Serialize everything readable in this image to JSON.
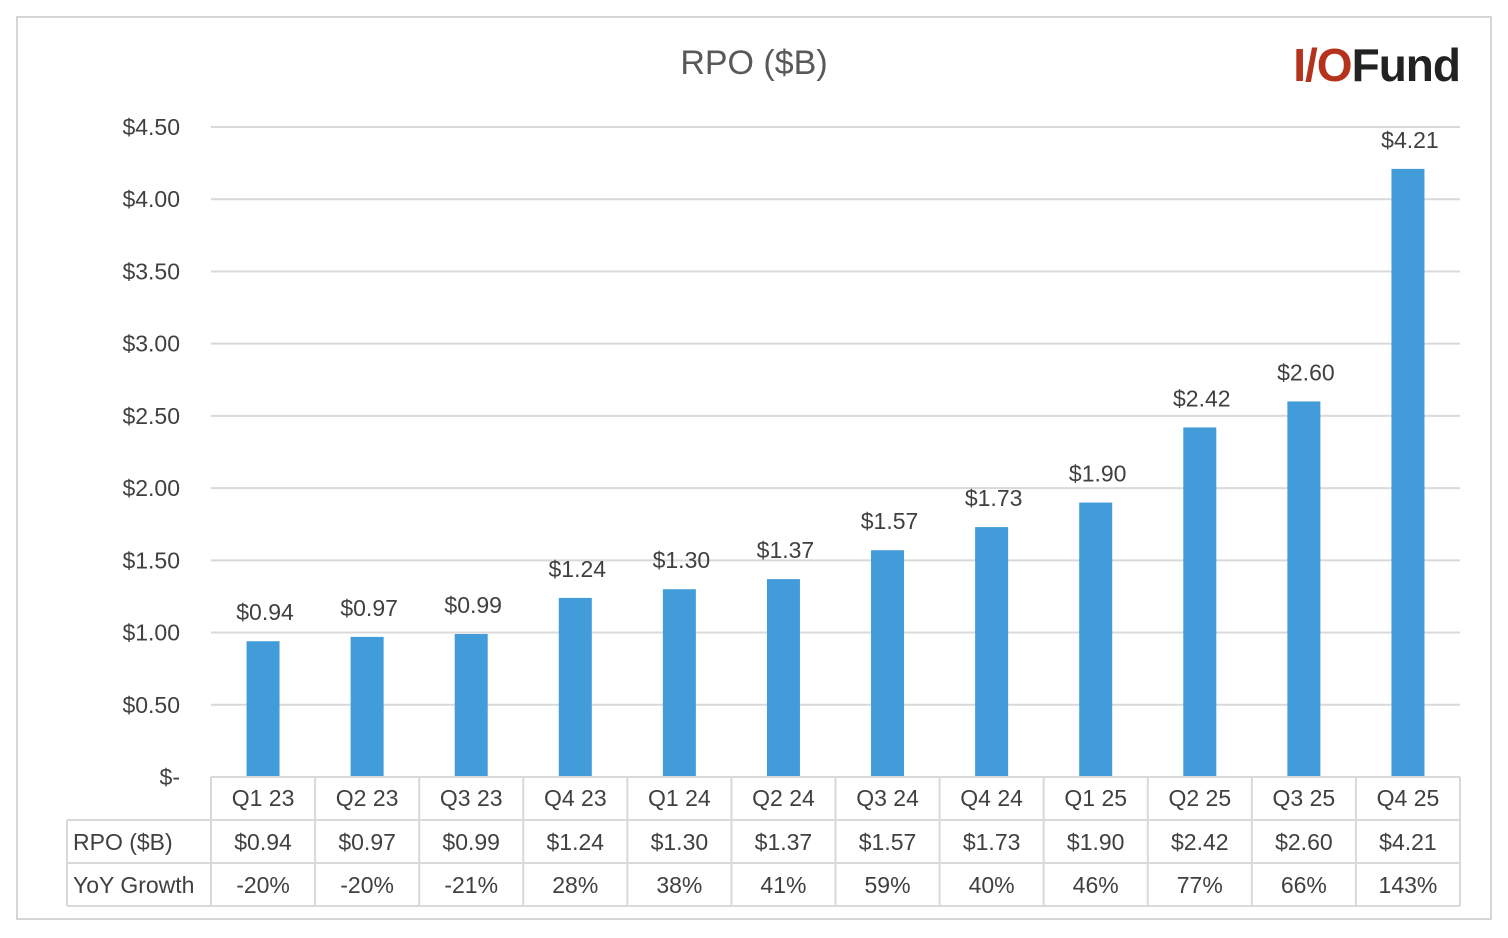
{
  "chart_data": {
    "type": "bar",
    "title": "RPO ($B)",
    "categories": [
      "Q1 23",
      "Q2 23",
      "Q3 23",
      "Q4 23",
      "Q1 24",
      "Q2 24",
      "Q3 24",
      "Q4 24",
      "Q1 25",
      "Q2 25",
      "Q3 25",
      "Q4 25"
    ],
    "series": [
      {
        "name": "RPO ($B)",
        "values": [
          0.94,
          0.97,
          0.99,
          1.24,
          1.3,
          1.37,
          1.57,
          1.73,
          1.9,
          2.42,
          2.6,
          4.21
        ],
        "labels": [
          "$0.94",
          "$0.97",
          "$0.99",
          "$1.24",
          "$1.30",
          "$1.37",
          "$1.57",
          "$1.73",
          "$1.90",
          "$2.42",
          "$2.60",
          "$4.21"
        ],
        "color": "#429CDA"
      }
    ],
    "ylim": [
      0,
      4.5
    ],
    "yticks": [
      {
        "value": 0,
        "label": "$-"
      },
      {
        "value": 0.5,
        "label": "$0.50"
      },
      {
        "value": 1.0,
        "label": "$1.00"
      },
      {
        "value": 1.5,
        "label": "$1.50"
      },
      {
        "value": 2.0,
        "label": "$2.00"
      },
      {
        "value": 2.5,
        "label": "$2.50"
      },
      {
        "value": 3.0,
        "label": "$3.00"
      },
      {
        "value": 3.5,
        "label": "$3.50"
      },
      {
        "value": 4.0,
        "label": "$4.00"
      },
      {
        "value": 4.5,
        "label": "$4.50"
      }
    ],
    "grid": true,
    "legend": "none",
    "data_table": {
      "rows": [
        {
          "label": "RPO ($B)",
          "cells": [
            "$0.94",
            "$0.97",
            "$0.99",
            "$1.24",
            "$1.30",
            "$1.37",
            "$1.57",
            "$1.73",
            "$1.90",
            "$2.42",
            "$2.60",
            "$4.21"
          ]
        },
        {
          "label": "YoY Growth",
          "cells": [
            "-20%",
            "-20%",
            "-21%",
            "28%",
            "38%",
            "41%",
            "59%",
            "40%",
            "46%",
            "77%",
            "66%",
            "143%"
          ]
        }
      ]
    }
  },
  "logo": {
    "part1": "I/O",
    "part2": "Fund"
  },
  "colors": {
    "bar": "#429CDA",
    "grid": "#d9d9d9",
    "logo_red": "#b5331c"
  }
}
